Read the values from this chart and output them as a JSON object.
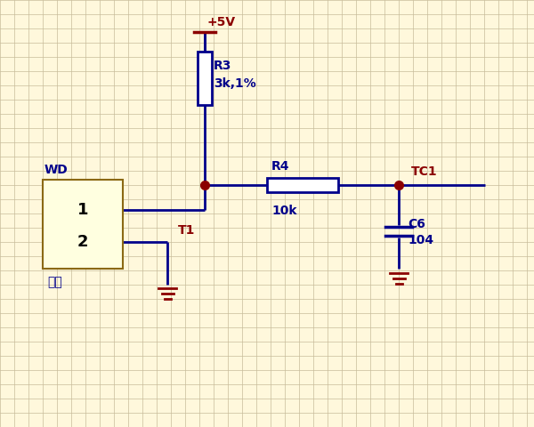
{
  "bg_color": "#FFF8DC",
  "grid_color": "#C8BC9A",
  "wire_color": "#00008B",
  "dot_color": "#8B0000",
  "label_color": "#00008B",
  "red_label_color": "#8B0000",
  "component_color": "#00008B",
  "ground_color": "#8B0000",
  "power_color": "#8B0000",
  "figsize": [
    6.0,
    4.8
  ],
  "dpi": 100,
  "R3_label": "R3",
  "R3_value": "3k,1%",
  "R4_label": "R4",
  "R4_value": "10k",
  "C6_label": "C6",
  "C6_value": "104",
  "TC1_label": "TC1",
  "VCC_label": "+5V",
  "WD_label": "WD",
  "component_label": "温度",
  "T1_label": "T1",
  "pin1_label": "1",
  "pin2_label": "2"
}
